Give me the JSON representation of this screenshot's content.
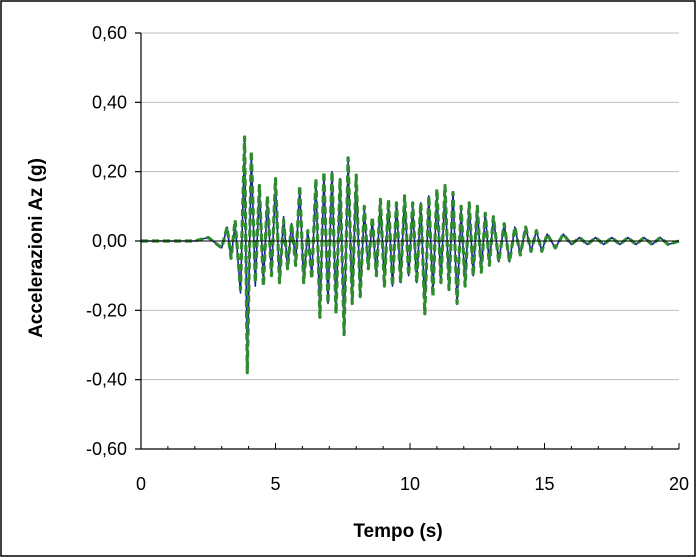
{
  "chart_data": {
    "type": "line",
    "title": "",
    "xlabel": "Tempo (s)",
    "ylabel": "Accelerazioni Az (g)",
    "xlim": [
      0,
      20
    ],
    "ylim": [
      -0.6,
      0.6
    ],
    "x_ticks": [
      0,
      5,
      10,
      15,
      20
    ],
    "y_ticks": [
      0.6,
      0.4,
      0.2,
      0.0,
      -0.2,
      -0.4,
      -0.6
    ],
    "x_tick_labels": [
      "0",
      "5",
      "10",
      "15",
      "20"
    ],
    "y_tick_labels": [
      "0,60",
      "0,40",
      "0,20",
      "0,00",
      "-0,20",
      "-0,40",
      "-0,60"
    ],
    "grid": "horizontal",
    "legend": "none",
    "series": [
      {
        "color": "#1f1f9a",
        "style": "solid",
        "x": [
          0,
          1.0,
          2.0,
          2.5,
          3.0,
          3.2,
          3.35,
          3.5,
          3.7,
          3.85,
          3.95,
          4.1,
          4.25,
          4.4,
          4.55,
          4.7,
          4.85,
          5.0,
          5.15,
          5.3,
          5.45,
          5.6,
          5.75,
          5.9,
          6.05,
          6.2,
          6.35,
          6.5,
          6.65,
          6.8,
          6.95,
          7.1,
          7.25,
          7.4,
          7.55,
          7.7,
          7.85,
          8.0,
          8.15,
          8.3,
          8.45,
          8.6,
          8.75,
          8.9,
          9.05,
          9.2,
          9.35,
          9.5,
          9.65,
          9.8,
          9.95,
          10.1,
          10.25,
          10.4,
          10.55,
          10.7,
          10.85,
          11.0,
          11.15,
          11.3,
          11.45,
          11.6,
          11.75,
          11.9,
          12.05,
          12.2,
          12.35,
          12.5,
          12.65,
          12.8,
          12.95,
          13.1,
          13.3,
          13.5,
          13.7,
          13.9,
          14.1,
          14.3,
          14.5,
          14.7,
          14.9,
          15.1,
          15.4,
          15.7,
          16.0,
          16.3,
          16.6,
          16.9,
          17.2,
          17.5,
          17.8,
          18.1,
          18.4,
          18.7,
          19.0,
          19.3,
          19.6,
          20.0
        ],
        "y": [
          0.0,
          0.0,
          0.0,
          0.01,
          -0.02,
          0.04,
          -0.05,
          0.05,
          -0.15,
          0.29,
          -0.38,
          0.25,
          -0.13,
          0.16,
          -0.12,
          0.12,
          -0.1,
          0.17,
          -0.12,
          0.07,
          -0.08,
          0.05,
          -0.06,
          0.15,
          -0.12,
          0.03,
          -0.1,
          0.17,
          -0.22,
          0.19,
          -0.18,
          0.2,
          -0.2,
          0.18,
          -0.26,
          0.23,
          -0.18,
          0.19,
          -0.16,
          0.09,
          -0.08,
          0.06,
          -0.1,
          0.12,
          -0.12,
          0.11,
          -0.13,
          0.11,
          -0.12,
          0.13,
          -0.1,
          0.1,
          -0.12,
          0.11,
          -0.2,
          0.13,
          -0.15,
          0.14,
          -0.12,
          0.15,
          -0.13,
          0.14,
          -0.18,
          0.09,
          -0.13,
          0.11,
          -0.1,
          0.1,
          -0.09,
          0.08,
          -0.07,
          0.07,
          -0.06,
          0.05,
          -0.06,
          0.04,
          -0.04,
          0.04,
          -0.03,
          0.03,
          -0.03,
          0.02,
          -0.02,
          0.02,
          -0.01,
          0.01,
          -0.01,
          0.01,
          -0.01,
          0.01,
          -0.01,
          0.01,
          -0.01,
          0.01,
          -0.01,
          0.01,
          -0.01,
          0.0
        ]
      },
      {
        "color": "#2e8b2e",
        "style": "dashed",
        "x": [
          0,
          1.0,
          2.0,
          2.5,
          3.0,
          3.2,
          3.35,
          3.5,
          3.7,
          3.85,
          3.95,
          4.1,
          4.25,
          4.4,
          4.55,
          4.7,
          4.85,
          5.0,
          5.15,
          5.3,
          5.45,
          5.6,
          5.75,
          5.9,
          6.05,
          6.2,
          6.35,
          6.5,
          6.65,
          6.8,
          6.95,
          7.1,
          7.25,
          7.4,
          7.55,
          7.7,
          7.85,
          8.0,
          8.15,
          8.3,
          8.45,
          8.6,
          8.75,
          8.9,
          9.05,
          9.2,
          9.35,
          9.5,
          9.65,
          9.8,
          9.95,
          10.1,
          10.25,
          10.4,
          10.55,
          10.7,
          10.85,
          11.0,
          11.15,
          11.3,
          11.45,
          11.6,
          11.75,
          11.9,
          12.05,
          12.2,
          12.35,
          12.5,
          12.65,
          12.8,
          12.95,
          13.1,
          13.3,
          13.5,
          13.7,
          13.9,
          14.1,
          14.3,
          14.5,
          14.7,
          14.9,
          15.1,
          15.4,
          15.7,
          16.0,
          16.3,
          16.6,
          16.9,
          17.2,
          17.5,
          17.8,
          18.1,
          18.4,
          18.7,
          19.0,
          19.3,
          19.6,
          20.0
        ],
        "y": [
          0.0,
          0.0,
          0.0,
          0.01,
          -0.02,
          0.04,
          -0.05,
          0.06,
          -0.14,
          0.3,
          -0.38,
          0.26,
          -0.12,
          0.16,
          -0.13,
          0.13,
          -0.1,
          0.18,
          -0.12,
          0.06,
          -0.08,
          0.05,
          -0.07,
          0.16,
          -0.12,
          0.03,
          -0.11,
          0.18,
          -0.22,
          0.2,
          -0.18,
          0.2,
          -0.21,
          0.18,
          -0.27,
          0.24,
          -0.18,
          0.19,
          -0.16,
          0.1,
          -0.08,
          0.07,
          -0.1,
          0.12,
          -0.13,
          0.12,
          -0.13,
          0.11,
          -0.12,
          0.13,
          -0.1,
          0.11,
          -0.12,
          0.11,
          -0.21,
          0.13,
          -0.16,
          0.15,
          -0.12,
          0.16,
          -0.14,
          0.14,
          -0.18,
          0.1,
          -0.13,
          0.11,
          -0.1,
          0.1,
          -0.09,
          0.08,
          -0.07,
          0.07,
          -0.06,
          0.05,
          -0.06,
          0.04,
          -0.04,
          0.04,
          -0.03,
          0.03,
          -0.03,
          0.02,
          -0.02,
          0.02,
          -0.01,
          0.01,
          -0.01,
          0.01,
          -0.01,
          0.01,
          -0.01,
          0.01,
          -0.01,
          0.01,
          -0.01,
          0.01,
          -0.01,
          0.0
        ]
      }
    ]
  }
}
